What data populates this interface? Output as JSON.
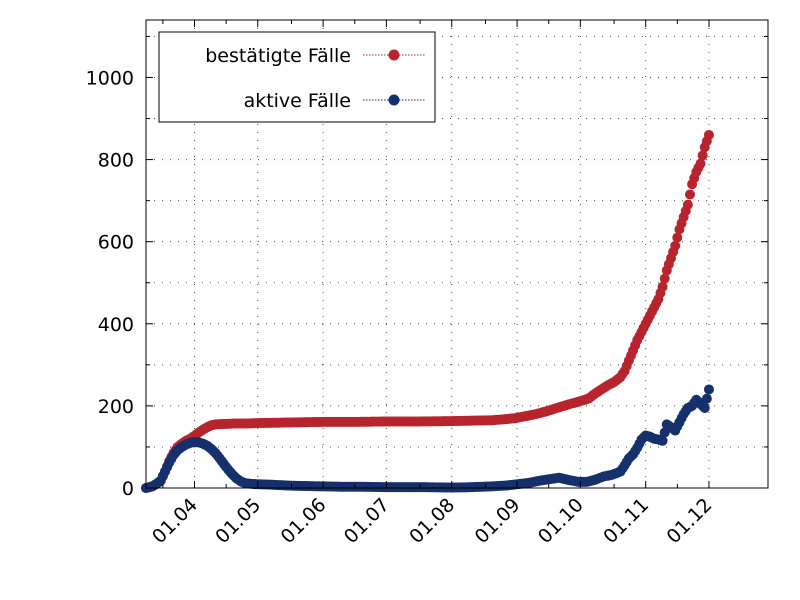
{
  "chart_data": {
    "type": "scatter",
    "title": "",
    "xlabel": "",
    "ylabel": "",
    "x_ticks": [
      "01.04",
      "01.05",
      "01.06",
      "01.07",
      "01.08",
      "01.09",
      "01.10",
      "01.11",
      "01.12"
    ],
    "x_tick_dates": [
      "2020-04-01",
      "2020-05-01",
      "2020-06-01",
      "2020-07-01",
      "2020-08-01",
      "2020-09-01",
      "2020-10-01",
      "2020-11-01",
      "2020-12-01"
    ],
    "xlim": [
      "2020-03-09",
      "2020-12-29"
    ],
    "y_ticks": [
      0,
      200,
      400,
      600,
      800,
      1000
    ],
    "ylim": [
      0,
      1140
    ],
    "grid": true,
    "legend_position": "top-left",
    "colors": {
      "confirmed": "#b8242e",
      "active": "#15306b"
    },
    "series": [
      {
        "name": "bestätigte Fälle",
        "points": [
          [
            "2020-03-09",
            0
          ],
          [
            "2020-03-12",
            4
          ],
          [
            "2020-03-14",
            10
          ],
          [
            "2020-03-16",
            18
          ],
          [
            "2020-03-18",
            40
          ],
          [
            "2020-03-20",
            65
          ],
          [
            "2020-03-22",
            85
          ],
          [
            "2020-03-24",
            100
          ],
          [
            "2020-03-26",
            108
          ],
          [
            "2020-03-28",
            115
          ],
          [
            "2020-03-30",
            120
          ],
          [
            "2020-04-01",
            127
          ],
          [
            "2020-04-03",
            135
          ],
          [
            "2020-04-05",
            142
          ],
          [
            "2020-04-07",
            148
          ],
          [
            "2020-04-09",
            153
          ],
          [
            "2020-04-11",
            155
          ],
          [
            "2020-04-15",
            156
          ],
          [
            "2020-04-20",
            157
          ],
          [
            "2020-04-25",
            157
          ],
          [
            "2020-04-30",
            158
          ],
          [
            "2020-05-10",
            159
          ],
          [
            "2020-05-20",
            160
          ],
          [
            "2020-06-01",
            161
          ],
          [
            "2020-06-15",
            161
          ],
          [
            "2020-07-01",
            162
          ],
          [
            "2020-07-15",
            162
          ],
          [
            "2020-08-01",
            163
          ],
          [
            "2020-08-10",
            164
          ],
          [
            "2020-08-20",
            165
          ],
          [
            "2020-08-25",
            167
          ],
          [
            "2020-08-31",
            170
          ],
          [
            "2020-09-05",
            175
          ],
          [
            "2020-09-10",
            180
          ],
          [
            "2020-09-15",
            187
          ],
          [
            "2020-09-20",
            195
          ],
          [
            "2020-09-25",
            203
          ],
          [
            "2020-09-30",
            210
          ],
          [
            "2020-10-05",
            218
          ],
          [
            "2020-10-08",
            230
          ],
          [
            "2020-10-11",
            240
          ],
          [
            "2020-10-14",
            250
          ],
          [
            "2020-10-17",
            258
          ],
          [
            "2020-10-20",
            270
          ],
          [
            "2020-10-22",
            285
          ],
          [
            "2020-10-24",
            310
          ],
          [
            "2020-10-26",
            335
          ],
          [
            "2020-10-28",
            360
          ],
          [
            "2020-10-30",
            380
          ],
          [
            "2020-11-01",
            400
          ],
          [
            "2020-11-03",
            420
          ],
          [
            "2020-11-05",
            440
          ],
          [
            "2020-11-07",
            460
          ],
          [
            "2020-11-09",
            490
          ],
          [
            "2020-11-11",
            530
          ],
          [
            "2020-11-13",
            560
          ],
          [
            "2020-11-15",
            590
          ],
          [
            "2020-11-17",
            630
          ],
          [
            "2020-11-19",
            660
          ],
          [
            "2020-11-21",
            690
          ],
          [
            "2020-11-23",
            740
          ],
          [
            "2020-11-25",
            770
          ],
          [
            "2020-11-27",
            790
          ],
          [
            "2020-11-29",
            830
          ],
          [
            "2020-12-01",
            860
          ]
        ]
      },
      {
        "name": "aktive Fälle",
        "points": [
          [
            "2020-03-09",
            0
          ],
          [
            "2020-03-12",
            4
          ],
          [
            "2020-03-14",
            10
          ],
          [
            "2020-03-16",
            18
          ],
          [
            "2020-03-18",
            40
          ],
          [
            "2020-03-20",
            62
          ],
          [
            "2020-03-22",
            80
          ],
          [
            "2020-03-24",
            92
          ],
          [
            "2020-03-26",
            100
          ],
          [
            "2020-03-28",
            106
          ],
          [
            "2020-03-30",
            110
          ],
          [
            "2020-04-01",
            112
          ],
          [
            "2020-04-03",
            111
          ],
          [
            "2020-04-05",
            108
          ],
          [
            "2020-04-07",
            103
          ],
          [
            "2020-04-09",
            95
          ],
          [
            "2020-04-11",
            85
          ],
          [
            "2020-04-13",
            72
          ],
          [
            "2020-04-15",
            58
          ],
          [
            "2020-04-17",
            45
          ],
          [
            "2020-04-19",
            33
          ],
          [
            "2020-04-21",
            23
          ],
          [
            "2020-04-23",
            16
          ],
          [
            "2020-04-25",
            12
          ],
          [
            "2020-04-28",
            10
          ],
          [
            "2020-05-02",
            9
          ],
          [
            "2020-05-08",
            8
          ],
          [
            "2020-05-15",
            6
          ],
          [
            "2020-05-22",
            5
          ],
          [
            "2020-06-01",
            4
          ],
          [
            "2020-06-10",
            3
          ],
          [
            "2020-06-20",
            3
          ],
          [
            "2020-07-01",
            2
          ],
          [
            "2020-07-10",
            2
          ],
          [
            "2020-07-20",
            2
          ],
          [
            "2020-08-01",
            1
          ],
          [
            "2020-08-10",
            2
          ],
          [
            "2020-08-20",
            4
          ],
          [
            "2020-08-27",
            6
          ],
          [
            "2020-09-01",
            9
          ],
          [
            "2020-09-07",
            13
          ],
          [
            "2020-09-12",
            18
          ],
          [
            "2020-09-17",
            22
          ],
          [
            "2020-09-21",
            25
          ],
          [
            "2020-09-25",
            20
          ],
          [
            "2020-09-30",
            15
          ],
          [
            "2020-10-04",
            15
          ],
          [
            "2020-10-08",
            20
          ],
          [
            "2020-10-12",
            28
          ],
          [
            "2020-10-16",
            32
          ],
          [
            "2020-10-20",
            40
          ],
          [
            "2020-10-22",
            55
          ],
          [
            "2020-10-24",
            72
          ],
          [
            "2020-10-26",
            82
          ],
          [
            "2020-10-28",
            98
          ],
          [
            "2020-10-30",
            118
          ],
          [
            "2020-11-01",
            128
          ],
          [
            "2020-11-03",
            125
          ],
          [
            "2020-11-05",
            120
          ],
          [
            "2020-11-07",
            118
          ],
          [
            "2020-11-09",
            115
          ],
          [
            "2020-11-11",
            155
          ],
          [
            "2020-11-13",
            148
          ],
          [
            "2020-11-15",
            140
          ],
          [
            "2020-11-17",
            160
          ],
          [
            "2020-11-19",
            180
          ],
          [
            "2020-11-21",
            195
          ],
          [
            "2020-11-23",
            200
          ],
          [
            "2020-11-25",
            215
          ],
          [
            "2020-11-27",
            205
          ],
          [
            "2020-11-29",
            195
          ],
          [
            "2020-12-01",
            240
          ]
        ]
      }
    ]
  }
}
